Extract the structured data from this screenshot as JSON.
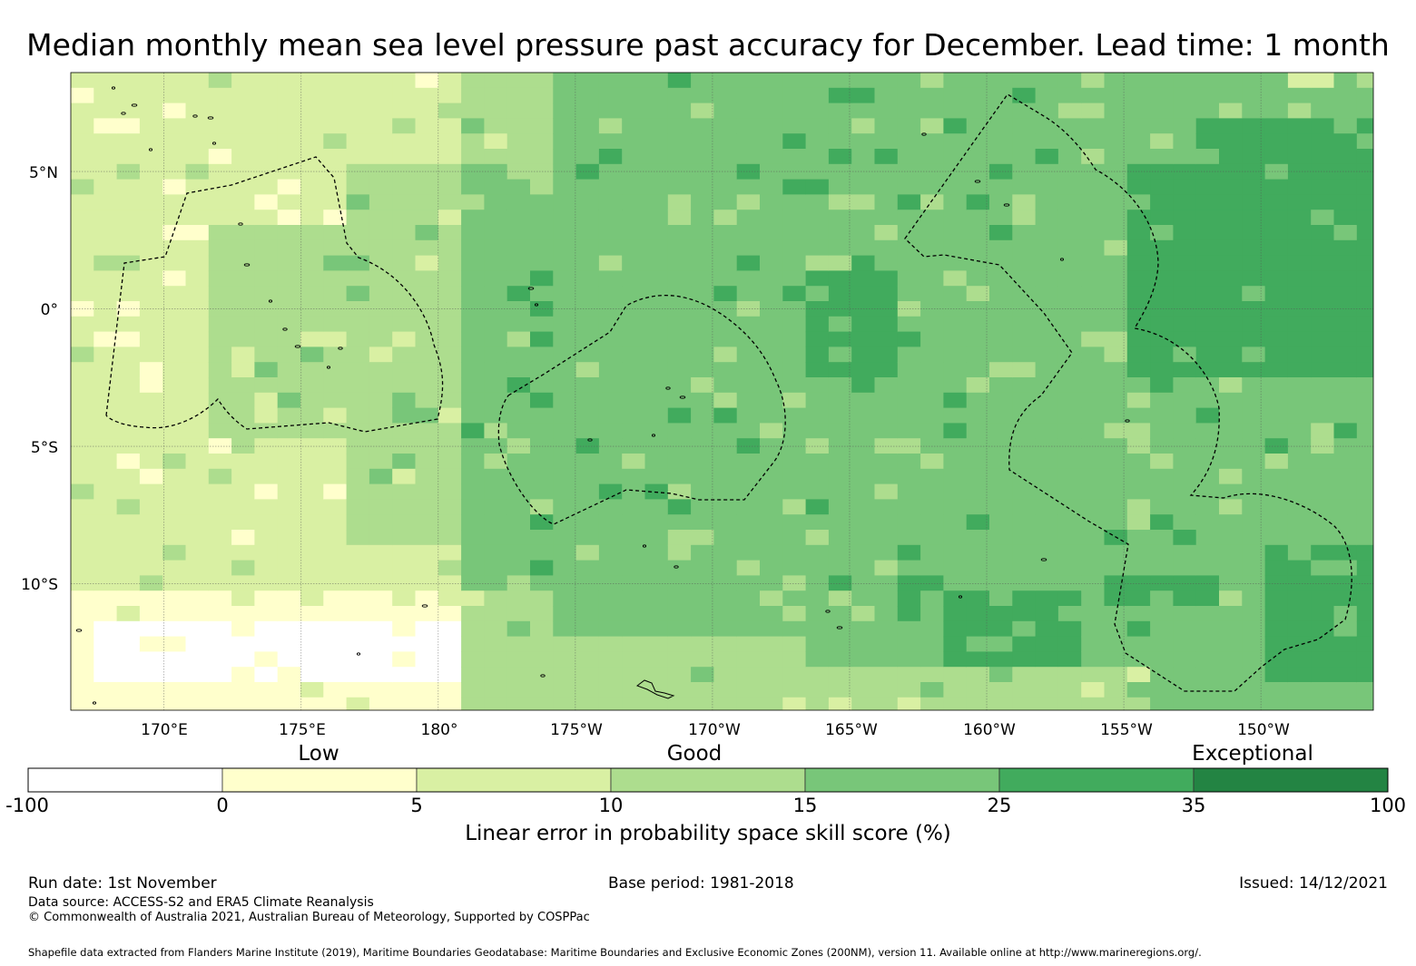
{
  "title": "Median monthly mean sea level pressure past accuracy for December. Lead time: 1 month",
  "map": {
    "lon_range_deg_east": [
      166.6,
      214.1
    ],
    "lat_range_deg": [
      -14.6,
      8.6
    ],
    "latitude_labels": [
      "5°N",
      "0°",
      "5°S",
      "10°S"
    ],
    "longitude_labels": [
      "170°E",
      "175°E",
      "180°",
      "175°W",
      "170°W",
      "165°W",
      "160°W",
      "155°W",
      "150°W"
    ],
    "color_scale": [
      "#ffffff",
      "#ffffcc",
      "#d9f0a3",
      "#addd8e",
      "#78c679",
      "#41ab5d",
      "#238443"
    ]
  },
  "colorbar": {
    "category_labels": [
      "Low",
      "Good",
      "Exceptional"
    ],
    "tick_labels": [
      "-100",
      "0",
      "5",
      "10",
      "15",
      "25",
      "35",
      "100"
    ],
    "bins": [
      {
        "from": -100,
        "to": 0,
        "color": "#ffffff"
      },
      {
        "from": 0,
        "to": 5,
        "color": "#ffffcc"
      },
      {
        "from": 5,
        "to": 10,
        "color": "#d9f0a3"
      },
      {
        "from": 10,
        "to": 15,
        "color": "#addd8e"
      },
      {
        "from": 15,
        "to": 25,
        "color": "#78c679"
      },
      {
        "from": 25,
        "to": 35,
        "color": "#41ab5d"
      },
      {
        "from": 35,
        "to": 100,
        "color": "#238443"
      }
    ],
    "title": "Linear error in probability space skill score (%)"
  },
  "footer": {
    "run_date": "Run date: 1st November",
    "base_period": "Base period: 1981-2018",
    "issued": "Issued: 14/12/2021",
    "data_source": "Data source: ACCESS-S2 and ERA5 Climate Reanalysis",
    "copyright": "© Commonwealth of Australia 2021, Australian Bureau of Meteorology, Supported by COSPPac",
    "shapefile_note": "Shapefile data extracted from Flanders Marine Institute (2019), Maritime Boundaries Geodatabase: Maritime Boundaries and Exclusive Economic Zones (200NM), version 11. Available online at http://www.marineregions.org/."
  }
}
